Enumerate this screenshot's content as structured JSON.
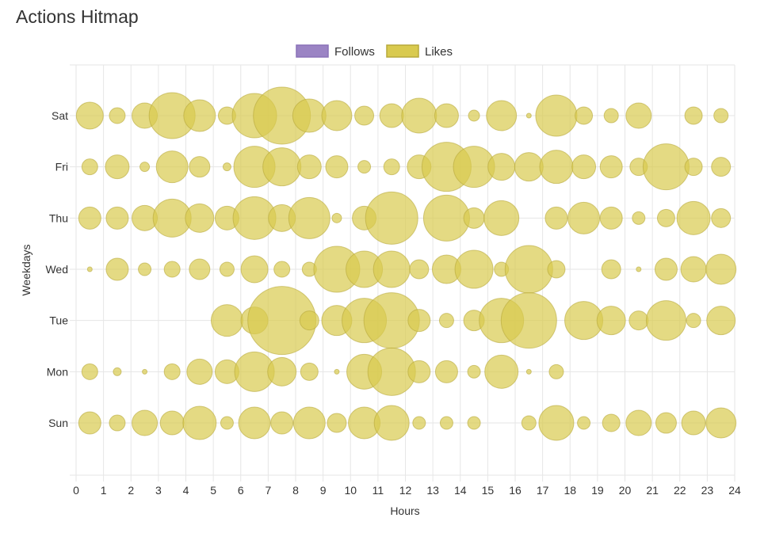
{
  "page": {
    "title": "Actions Hitmap"
  },
  "colors": {
    "follows_fill": "#9b84c4",
    "follows_stroke": "#8a72b8",
    "likes_fill": "#d9ca4f",
    "likes_stroke": "#b7a93a",
    "grid": "#e6e6e6"
  },
  "chart_data": {
    "type": "bubble",
    "title": "Actions Hitmap",
    "xlabel": "Hours",
    "ylabel": "Weekdays",
    "xlim": [
      0,
      24
    ],
    "x_ticks": [
      "0",
      "1",
      "2",
      "3",
      "4",
      "5",
      "6",
      "7",
      "8",
      "9",
      "10",
      "11",
      "12",
      "13",
      "14",
      "15",
      "16",
      "17",
      "18",
      "19",
      "20",
      "21",
      "22",
      "23",
      "24"
    ],
    "y_categories": [
      "Sun",
      "Mon",
      "Tue",
      "Wed",
      "Thu",
      "Fri",
      "Sat"
    ],
    "legend": {
      "position": "top",
      "entries": [
        "Follows",
        "Likes"
      ]
    },
    "grid": true,
    "series": [
      {
        "name": "Follows",
        "points": []
      },
      {
        "name": "Likes",
        "points": [
          {
            "x": 0.5,
            "y": "Sat",
            "r": 17
          },
          {
            "x": 1.5,
            "y": "Sat",
            "r": 10
          },
          {
            "x": 2.5,
            "y": "Sat",
            "r": 16
          },
          {
            "x": 3.5,
            "y": "Sat",
            "r": 29
          },
          {
            "x": 4.5,
            "y": "Sat",
            "r": 20
          },
          {
            "x": 5.5,
            "y": "Sat",
            "r": 11
          },
          {
            "x": 6.5,
            "y": "Sat",
            "r": 28
          },
          {
            "x": 7.5,
            "y": "Sat",
            "r": 36
          },
          {
            "x": 8.5,
            "y": "Sat",
            "r": 21
          },
          {
            "x": 9.5,
            "y": "Sat",
            "r": 19
          },
          {
            "x": 10.5,
            "y": "Sat",
            "r": 12
          },
          {
            "x": 11.5,
            "y": "Sat",
            "r": 15
          },
          {
            "x": 12.5,
            "y": "Sat",
            "r": 22
          },
          {
            "x": 13.5,
            "y": "Sat",
            "r": 15
          },
          {
            "x": 14.5,
            "y": "Sat",
            "r": 7
          },
          {
            "x": 15.5,
            "y": "Sat",
            "r": 19
          },
          {
            "x": 16.5,
            "y": "Sat",
            "r": 3
          },
          {
            "x": 17.5,
            "y": "Sat",
            "r": 26
          },
          {
            "x": 18.5,
            "y": "Sat",
            "r": 11
          },
          {
            "x": 19.5,
            "y": "Sat",
            "r": 9
          },
          {
            "x": 20.5,
            "y": "Sat",
            "r": 16
          },
          {
            "x": 22.5,
            "y": "Sat",
            "r": 11
          },
          {
            "x": 23.5,
            "y": "Sat",
            "r": 9
          },
          {
            "x": 0.5,
            "y": "Fri",
            "r": 10
          },
          {
            "x": 1.5,
            "y": "Fri",
            "r": 15
          },
          {
            "x": 2.5,
            "y": "Fri",
            "r": 6
          },
          {
            "x": 3.5,
            "y": "Fri",
            "r": 20
          },
          {
            "x": 4.5,
            "y": "Fri",
            "r": 13
          },
          {
            "x": 5.5,
            "y": "Fri",
            "r": 5
          },
          {
            "x": 6.5,
            "y": "Fri",
            "r": 26
          },
          {
            "x": 7.5,
            "y": "Fri",
            "r": 24
          },
          {
            "x": 8.5,
            "y": "Fri",
            "r": 15
          },
          {
            "x": 9.5,
            "y": "Fri",
            "r": 14
          },
          {
            "x": 10.5,
            "y": "Fri",
            "r": 8
          },
          {
            "x": 11.5,
            "y": "Fri",
            "r": 10
          },
          {
            "x": 12.5,
            "y": "Fri",
            "r": 15
          },
          {
            "x": 13.5,
            "y": "Fri",
            "r": 31
          },
          {
            "x": 14.5,
            "y": "Fri",
            "r": 26
          },
          {
            "x": 15.5,
            "y": "Fri",
            "r": 17
          },
          {
            "x": 16.5,
            "y": "Fri",
            "r": 18
          },
          {
            "x": 17.5,
            "y": "Fri",
            "r": 21
          },
          {
            "x": 18.5,
            "y": "Fri",
            "r": 15
          },
          {
            "x": 19.5,
            "y": "Fri",
            "r": 14
          },
          {
            "x": 20.5,
            "y": "Fri",
            "r": 11
          },
          {
            "x": 21.5,
            "y": "Fri",
            "r": 29
          },
          {
            "x": 22.5,
            "y": "Fri",
            "r": 11
          },
          {
            "x": 23.5,
            "y": "Fri",
            "r": 12
          },
          {
            "x": 0.5,
            "y": "Thu",
            "r": 14
          },
          {
            "x": 1.5,
            "y": "Thu",
            "r": 14
          },
          {
            "x": 2.5,
            "y": "Thu",
            "r": 16
          },
          {
            "x": 3.5,
            "y": "Thu",
            "r": 24
          },
          {
            "x": 4.5,
            "y": "Thu",
            "r": 18
          },
          {
            "x": 5.5,
            "y": "Thu",
            "r": 15
          },
          {
            "x": 6.5,
            "y": "Thu",
            "r": 27
          },
          {
            "x": 7.5,
            "y": "Thu",
            "r": 17
          },
          {
            "x": 8.5,
            "y": "Thu",
            "r": 26
          },
          {
            "x": 9.5,
            "y": "Thu",
            "r": 6
          },
          {
            "x": 10.5,
            "y": "Thu",
            "r": 15
          },
          {
            "x": 11.5,
            "y": "Thu",
            "r": 33
          },
          {
            "x": 13.5,
            "y": "Thu",
            "r": 29
          },
          {
            "x": 14.5,
            "y": "Thu",
            "r": 13
          },
          {
            "x": 15.5,
            "y": "Thu",
            "r": 22
          },
          {
            "x": 17.5,
            "y": "Thu",
            "r": 14
          },
          {
            "x": 18.5,
            "y": "Thu",
            "r": 20
          },
          {
            "x": 19.5,
            "y": "Thu",
            "r": 14
          },
          {
            "x": 20.5,
            "y": "Thu",
            "r": 8
          },
          {
            "x": 21.5,
            "y": "Thu",
            "r": 11
          },
          {
            "x": 22.5,
            "y": "Thu",
            "r": 21
          },
          {
            "x": 23.5,
            "y": "Thu",
            "r": 12
          },
          {
            "x": 0.5,
            "y": "Wed",
            "r": 3
          },
          {
            "x": 1.5,
            "y": "Wed",
            "r": 14
          },
          {
            "x": 2.5,
            "y": "Wed",
            "r": 8
          },
          {
            "x": 3.5,
            "y": "Wed",
            "r": 10
          },
          {
            "x": 4.5,
            "y": "Wed",
            "r": 13
          },
          {
            "x": 5.5,
            "y": "Wed",
            "r": 9
          },
          {
            "x": 6.5,
            "y": "Wed",
            "r": 17
          },
          {
            "x": 7.5,
            "y": "Wed",
            "r": 10
          },
          {
            "x": 8.5,
            "y": "Wed",
            "r": 9
          },
          {
            "x": 9.5,
            "y": "Wed",
            "r": 29
          },
          {
            "x": 10.5,
            "y": "Wed",
            "r": 23
          },
          {
            "x": 11.5,
            "y": "Wed",
            "r": 23
          },
          {
            "x": 12.5,
            "y": "Wed",
            "r": 12
          },
          {
            "x": 13.5,
            "y": "Wed",
            "r": 18
          },
          {
            "x": 14.5,
            "y": "Wed",
            "r": 24
          },
          {
            "x": 15.5,
            "y": "Wed",
            "r": 9
          },
          {
            "x": 16.5,
            "y": "Wed",
            "r": 30
          },
          {
            "x": 17.5,
            "y": "Wed",
            "r": 11
          },
          {
            "x": 19.5,
            "y": "Wed",
            "r": 12
          },
          {
            "x": 20.5,
            "y": "Wed",
            "r": 3
          },
          {
            "x": 21.5,
            "y": "Wed",
            "r": 14
          },
          {
            "x": 22.5,
            "y": "Wed",
            "r": 16
          },
          {
            "x": 23.5,
            "y": "Wed",
            "r": 19
          },
          {
            "x": 5.5,
            "y": "Tue",
            "r": 20
          },
          {
            "x": 6.5,
            "y": "Tue",
            "r": 17
          },
          {
            "x": 7.5,
            "y": "Tue",
            "r": 43
          },
          {
            "x": 8.5,
            "y": "Tue",
            "r": 12
          },
          {
            "x": 9.5,
            "y": "Tue",
            "r": 19
          },
          {
            "x": 10.5,
            "y": "Tue",
            "r": 28
          },
          {
            "x": 11.5,
            "y": "Tue",
            "r": 35
          },
          {
            "x": 12.5,
            "y": "Tue",
            "r": 14
          },
          {
            "x": 13.5,
            "y": "Tue",
            "r": 9
          },
          {
            "x": 14.5,
            "y": "Tue",
            "r": 13
          },
          {
            "x": 15.5,
            "y": "Tue",
            "r": 28
          },
          {
            "x": 16.5,
            "y": "Tue",
            "r": 35
          },
          {
            "x": 18.5,
            "y": "Tue",
            "r": 24
          },
          {
            "x": 19.5,
            "y": "Tue",
            "r": 18
          },
          {
            "x": 20.5,
            "y": "Tue",
            "r": 12
          },
          {
            "x": 21.5,
            "y": "Tue",
            "r": 25
          },
          {
            "x": 22.5,
            "y": "Tue",
            "r": 9
          },
          {
            "x": 23.5,
            "y": "Tue",
            "r": 18
          },
          {
            "x": 0.5,
            "y": "Mon",
            "r": 10
          },
          {
            "x": 1.5,
            "y": "Mon",
            "r": 5
          },
          {
            "x": 2.5,
            "y": "Mon",
            "r": 3
          },
          {
            "x": 3.5,
            "y": "Mon",
            "r": 10
          },
          {
            "x": 4.5,
            "y": "Mon",
            "r": 16
          },
          {
            "x": 5.5,
            "y": "Mon",
            "r": 15
          },
          {
            "x": 6.5,
            "y": "Mon",
            "r": 25
          },
          {
            "x": 7.5,
            "y": "Mon",
            "r": 18
          },
          {
            "x": 8.5,
            "y": "Mon",
            "r": 11
          },
          {
            "x": 9.5,
            "y": "Mon",
            "r": 3
          },
          {
            "x": 10.5,
            "y": "Mon",
            "r": 22
          },
          {
            "x": 11.5,
            "y": "Mon",
            "r": 30
          },
          {
            "x": 12.5,
            "y": "Mon",
            "r": 14
          },
          {
            "x": 13.5,
            "y": "Mon",
            "r": 14
          },
          {
            "x": 14.5,
            "y": "Mon",
            "r": 8
          },
          {
            "x": 15.5,
            "y": "Mon",
            "r": 21
          },
          {
            "x": 16.5,
            "y": "Mon",
            "r": 3
          },
          {
            "x": 17.5,
            "y": "Mon",
            "r": 9
          },
          {
            "x": 0.5,
            "y": "Sun",
            "r": 14
          },
          {
            "x": 1.5,
            "y": "Sun",
            "r": 10
          },
          {
            "x": 2.5,
            "y": "Sun",
            "r": 16
          },
          {
            "x": 3.5,
            "y": "Sun",
            "r": 15
          },
          {
            "x": 4.5,
            "y": "Sun",
            "r": 21
          },
          {
            "x": 5.5,
            "y": "Sun",
            "r": 8
          },
          {
            "x": 6.5,
            "y": "Sun",
            "r": 20
          },
          {
            "x": 7.5,
            "y": "Sun",
            "r": 14
          },
          {
            "x": 8.5,
            "y": "Sun",
            "r": 20
          },
          {
            "x": 9.5,
            "y": "Sun",
            "r": 12
          },
          {
            "x": 10.5,
            "y": "Sun",
            "r": 20
          },
          {
            "x": 11.5,
            "y": "Sun",
            "r": 22
          },
          {
            "x": 12.5,
            "y": "Sun",
            "r": 8
          },
          {
            "x": 13.5,
            "y": "Sun",
            "r": 8
          },
          {
            "x": 14.5,
            "y": "Sun",
            "r": 8
          },
          {
            "x": 16.5,
            "y": "Sun",
            "r": 9
          },
          {
            "x": 17.5,
            "y": "Sun",
            "r": 22
          },
          {
            "x": 18.5,
            "y": "Sun",
            "r": 8
          },
          {
            "x": 19.5,
            "y": "Sun",
            "r": 11
          },
          {
            "x": 20.5,
            "y": "Sun",
            "r": 16
          },
          {
            "x": 21.5,
            "y": "Sun",
            "r": 13
          },
          {
            "x": 22.5,
            "y": "Sun",
            "r": 15
          },
          {
            "x": 23.5,
            "y": "Sun",
            "r": 19
          }
        ]
      }
    ]
  }
}
